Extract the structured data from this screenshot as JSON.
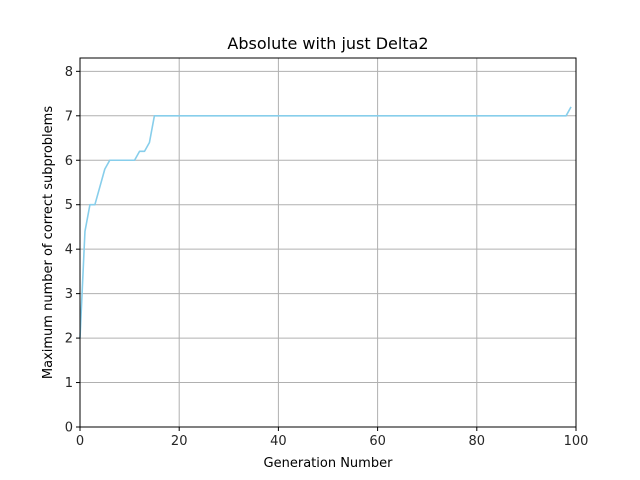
{
  "chart_data": {
    "type": "line",
    "title": "Absolute with just Delta2",
    "xlabel": "Generation Number",
    "ylabel": "Maximum number of correct subproblems",
    "xlim": [
      0,
      100
    ],
    "ylim": [
      0,
      8.3
    ],
    "xticks": [
      0,
      20,
      40,
      60,
      80,
      100
    ],
    "yticks": [
      0,
      1,
      2,
      3,
      4,
      5,
      6,
      7,
      8
    ],
    "grid": true,
    "series": [
      {
        "color": "#87ceeb",
        "x": [
          0,
          1,
          2,
          3,
          4,
          5,
          6,
          7,
          8,
          9,
          10,
          11,
          12,
          13,
          14,
          15,
          20,
          40,
          60,
          80,
          98,
          99
        ],
        "y": [
          2.0,
          4.4,
          5.0,
          5.0,
          5.4,
          5.8,
          6.0,
          6.0,
          6.0,
          6.0,
          6.0,
          6.0,
          6.2,
          6.2,
          6.4,
          7.0,
          7.0,
          7.0,
          7.0,
          7.0,
          7.0,
          7.2
        ]
      }
    ]
  }
}
